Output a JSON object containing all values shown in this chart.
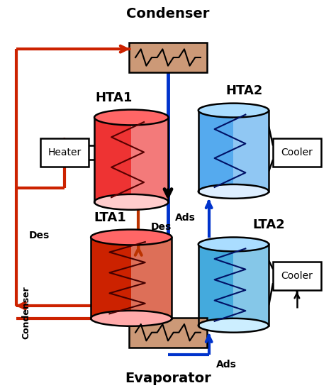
{
  "title_top": "Condenser",
  "title_bottom": "Evaporator",
  "label_HTA1": "HTA1",
  "label_HTA2": "HTA2",
  "label_LTA1": "LTA1",
  "label_LTA2": "LTA2",
  "label_heater": "Heater",
  "label_cooler1": "Cooler",
  "label_cooler2": "Cooler",
  "label_des_right": "Des",
  "label_des_left": "Des",
  "label_ads_mid": "Ads",
  "label_ads_bot": "Ads",
  "label_condenser_vert": "Condenser",
  "color_red_outer": "#CC2200",
  "color_orange_des": "#BB3300",
  "color_blue": "#0033CC",
  "color_dark": "#111111",
  "color_hx_brown": "#AA7755",
  "color_red_cyl_body": "#EE3333",
  "color_red_cyl_top": "#FF8888",
  "color_red_cyl_bot": "#FFBBBB",
  "color_blue_cyl_body": "#44AAEE",
  "color_blue_cyl_top": "#AADDFF",
  "color_blue_cyl_bot": "#CCEEFF",
  "bg_color": "#FFFFFF",
  "figsize": [
    4.74,
    5.47
  ],
  "dpi": 100
}
